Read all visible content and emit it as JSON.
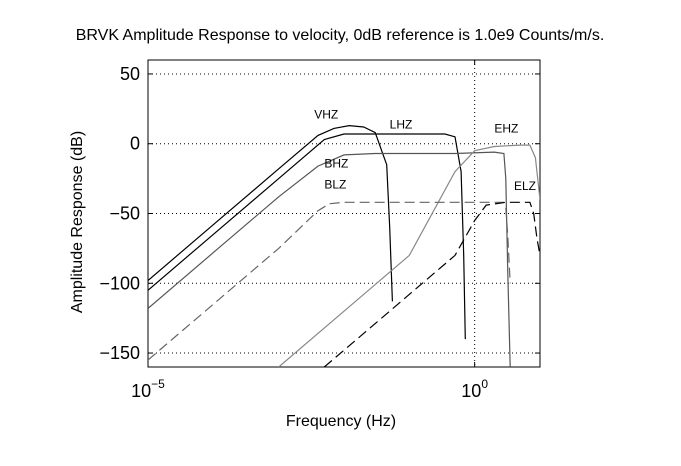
{
  "chart_data": {
    "type": "line",
    "title": "BRVK Amplitude Response to velocity, 0dB reference is 1.0e9 Counts/m/s.",
    "xlabel": "Frequency (Hz)",
    "ylabel": "Amplitude Response (dB)",
    "x_scale": "log",
    "xlim": [
      1e-05,
      10
    ],
    "ylim": [
      -160,
      60
    ],
    "x_ticks": [
      {
        "value": 1e-05,
        "base": "10",
        "exp": "−5"
      },
      {
        "value": 1,
        "base": "10",
        "exp": "0"
      }
    ],
    "y_ticks": [
      {
        "value": 50,
        "label": "50"
      },
      {
        "value": 0,
        "label": "0"
      },
      {
        "value": -50,
        "label": "−50"
      },
      {
        "value": -100,
        "label": "−100"
      },
      {
        "value": -150,
        "label": "−150"
      }
    ],
    "grid": true,
    "series": [
      {
        "name": "VHZ",
        "color": "#000000",
        "dash": "",
        "label_at": [
          0.0035,
          18
        ],
        "points": [
          [
            1e-05,
            -98
          ],
          [
            0.0001,
            -58
          ],
          [
            0.001,
            -18
          ],
          [
            0.004,
            6
          ],
          [
            0.007,
            11
          ],
          [
            0.012,
            13
          ],
          [
            0.02,
            12
          ],
          [
            0.03,
            8
          ],
          [
            0.045,
            -15
          ],
          [
            0.05,
            -60
          ],
          [
            0.055,
            -113
          ]
        ]
      },
      {
        "name": "LHZ",
        "color": "#000000",
        "dash": "",
        "label_at": [
          0.05,
          11
        ],
        "points": [
          [
            1e-05,
            -105
          ],
          [
            0.0001,
            -65
          ],
          [
            0.001,
            -25
          ],
          [
            0.005,
            3
          ],
          [
            0.01,
            7
          ],
          [
            0.05,
            7
          ],
          [
            0.35,
            7
          ],
          [
            0.5,
            5
          ],
          [
            0.62,
            -20
          ],
          [
            0.68,
            -80
          ],
          [
            0.72,
            -140
          ]
        ]
      },
      {
        "name": "BHZ",
        "color": "#555555",
        "dash": "",
        "label_at": [
          0.005,
          -17
        ],
        "points": [
          [
            1e-05,
            -118
          ],
          [
            0.0001,
            -78
          ],
          [
            0.001,
            -38
          ],
          [
            0.004,
            -16
          ],
          [
            0.01,
            -8
          ],
          [
            0.03,
            -7
          ],
          [
            0.5,
            -7
          ],
          [
            2,
            -6
          ],
          [
            2.8,
            -7
          ],
          [
            3,
            -25
          ],
          [
            3.2,
            -90
          ],
          [
            3.5,
            -160
          ]
        ]
      },
      {
        "name": "EHZ",
        "color": "#888888",
        "dash": "",
        "label_at": [
          2,
          8
        ],
        "points": [
          [
            0.001,
            -160
          ],
          [
            0.01,
            -120
          ],
          [
            0.1,
            -80
          ],
          [
            0.5,
            -20
          ],
          [
            1,
            -5
          ],
          [
            2,
            -2
          ],
          [
            5,
            -1
          ],
          [
            7,
            -1
          ],
          [
            8.5,
            -10
          ],
          [
            10,
            -40
          ]
        ]
      },
      {
        "name": "BLZ",
        "color": "#666666",
        "dash": "10,5",
        "label_at": [
          0.005,
          -32
        ],
        "points": [
          [
            1e-05,
            -155
          ],
          [
            0.0001,
            -115
          ],
          [
            0.001,
            -75
          ],
          [
            0.004,
            -48
          ],
          [
            0.006,
            -43
          ],
          [
            0.01,
            -42
          ],
          [
            0.1,
            -42
          ],
          [
            2,
            -42
          ],
          [
            2.8,
            -42
          ],
          [
            3,
            -46
          ],
          [
            3.2,
            -65
          ],
          [
            3.5,
            -100
          ]
        ]
      },
      {
        "name": "ELZ",
        "color": "#000000",
        "dash": "10,5",
        "label_at": [
          4,
          -33
        ],
        "points": [
          [
            0.005,
            -160
          ],
          [
            0.05,
            -120
          ],
          [
            0.5,
            -80
          ],
          [
            1,
            -55
          ],
          [
            1.5,
            -44
          ],
          [
            3,
            -42
          ],
          [
            7,
            -42
          ],
          [
            8,
            -50
          ],
          [
            9,
            -68
          ],
          [
            10,
            -80
          ]
        ]
      }
    ]
  }
}
